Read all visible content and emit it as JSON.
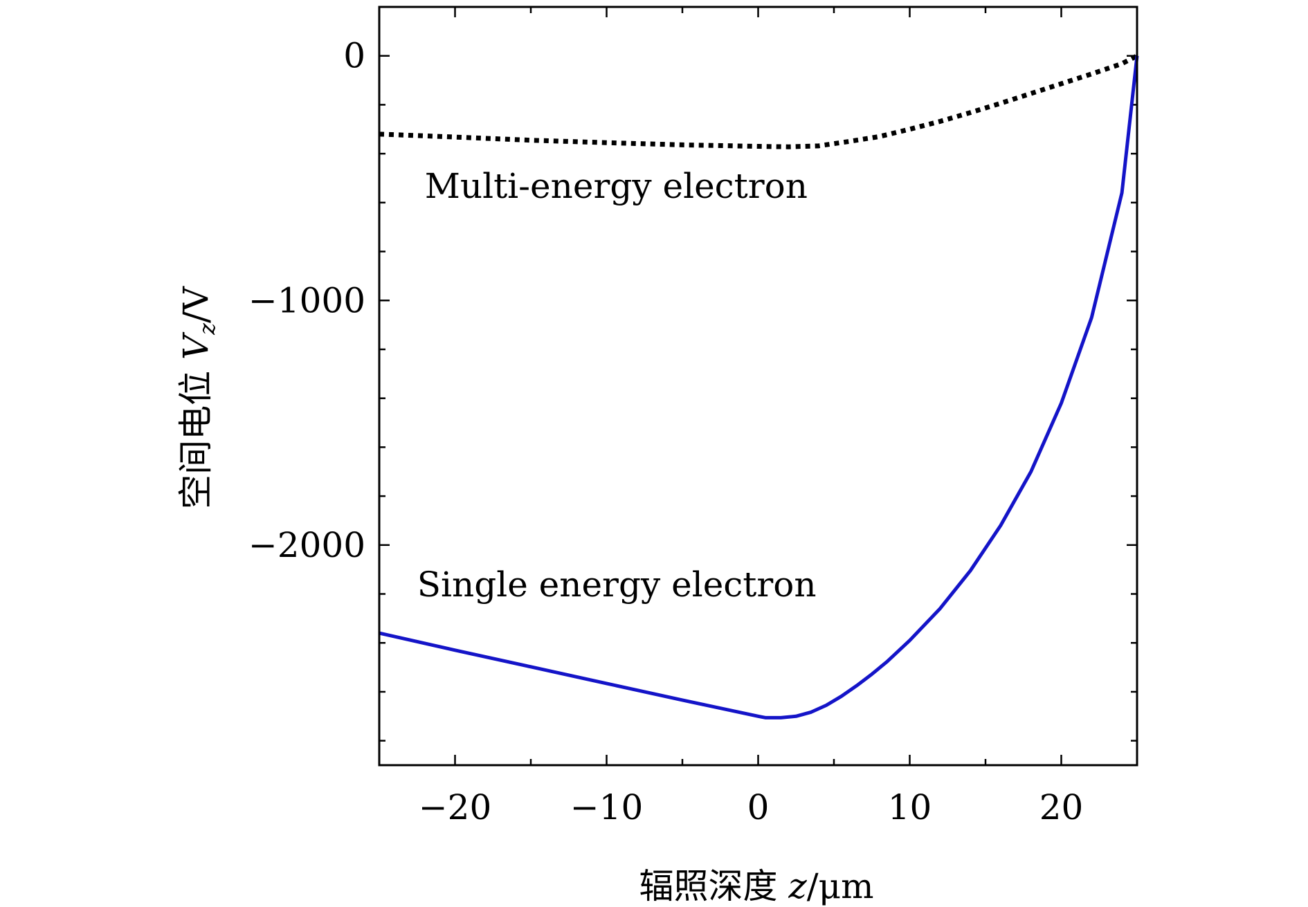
{
  "chart_data": {
    "type": "line",
    "title": "",
    "xlabel_cn": "辐照深度",
    "xlabel_var": "z",
    "xlabel_unit": "/μm",
    "ylabel_cn": "空间电位",
    "ylabel_var": "V",
    "ylabel_sub": "z",
    "ylabel_unit": "/V",
    "xlim": [
      -25,
      25
    ],
    "ylim": [
      -2900,
      200
    ],
    "xticks": [
      -20,
      -10,
      0,
      10,
      20
    ],
    "xtick_labels": [
      "−20",
      "−10",
      "0",
      "10",
      "20"
    ],
    "yticks": [
      0,
      -1000,
      -2000
    ],
    "ytick_labels": [
      "0",
      "−1000",
      "−2000"
    ],
    "x_minor_step": 5,
    "y_minor_step": 200,
    "grid": false,
    "series": [
      {
        "name": "Multi-energy electron",
        "color": "#000000",
        "style": "dotted",
        "label_at": [
          -22,
          -580
        ],
        "points": [
          [
            -25,
            -320
          ],
          [
            -20,
            -332
          ],
          [
            -15,
            -345
          ],
          [
            -10,
            -355
          ],
          [
            -5,
            -364
          ],
          [
            0,
            -370
          ],
          [
            2,
            -372
          ],
          [
            4,
            -368
          ],
          [
            6,
            -350
          ],
          [
            8,
            -330
          ],
          [
            10,
            -300
          ],
          [
            12,
            -268
          ],
          [
            14,
            -232
          ],
          [
            16,
            -194
          ],
          [
            18,
            -154
          ],
          [
            20,
            -114
          ],
          [
            22,
            -74
          ],
          [
            24,
            -32
          ],
          [
            25,
            0
          ]
        ]
      },
      {
        "name": "Single energy electron",
        "color": "#1414c8",
        "style": "solid",
        "label_at": [
          -22.5,
          -2210
        ],
        "points": [
          [
            -25,
            -2360
          ],
          [
            -20,
            -2430
          ],
          [
            -15,
            -2498
          ],
          [
            -10,
            -2566
          ],
          [
            -5,
            -2634
          ],
          [
            0,
            -2700
          ],
          [
            0.5,
            -2706
          ],
          [
            1.5,
            -2706
          ],
          [
            2.5,
            -2700
          ],
          [
            3.5,
            -2683
          ],
          [
            4.5,
            -2655
          ],
          [
            5.5,
            -2618
          ],
          [
            6.5,
            -2575
          ],
          [
            7.5,
            -2528
          ],
          [
            8.5,
            -2477
          ],
          [
            10,
            -2390
          ],
          [
            12,
            -2260
          ],
          [
            14,
            -2105
          ],
          [
            16,
            -1920
          ],
          [
            18,
            -1700
          ],
          [
            20,
            -1420
          ],
          [
            22,
            -1070
          ],
          [
            24,
            -560
          ],
          [
            25,
            0
          ]
        ]
      }
    ]
  }
}
